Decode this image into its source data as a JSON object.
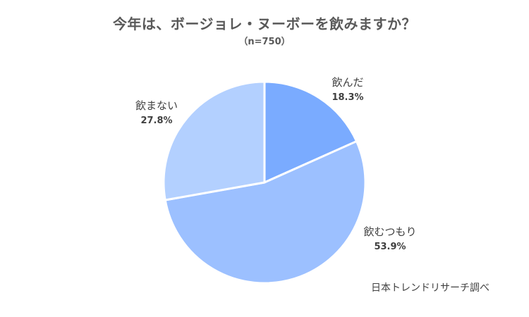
{
  "chart_data": {
    "type": "pie",
    "title": "今年は、ボージョレ・ヌーボーを飲みますか？",
    "subtitle": "（n=750）",
    "slices": [
      {
        "label": "飲んだ",
        "value": 18.3,
        "value_label": "18.3%",
        "color": "#7aabff"
      },
      {
        "label": "飲むつもり",
        "value": 53.9,
        "value_label": "53.9%",
        "color": "#9cc0ff"
      },
      {
        "label": "飲まない",
        "value": 27.8,
        "value_label": "27.8%",
        "color": "#b3d0ff"
      }
    ],
    "start_angle": "12 o'clock",
    "direction": "clockwise"
  },
  "source": "日本トレンドリサーチ調べ"
}
